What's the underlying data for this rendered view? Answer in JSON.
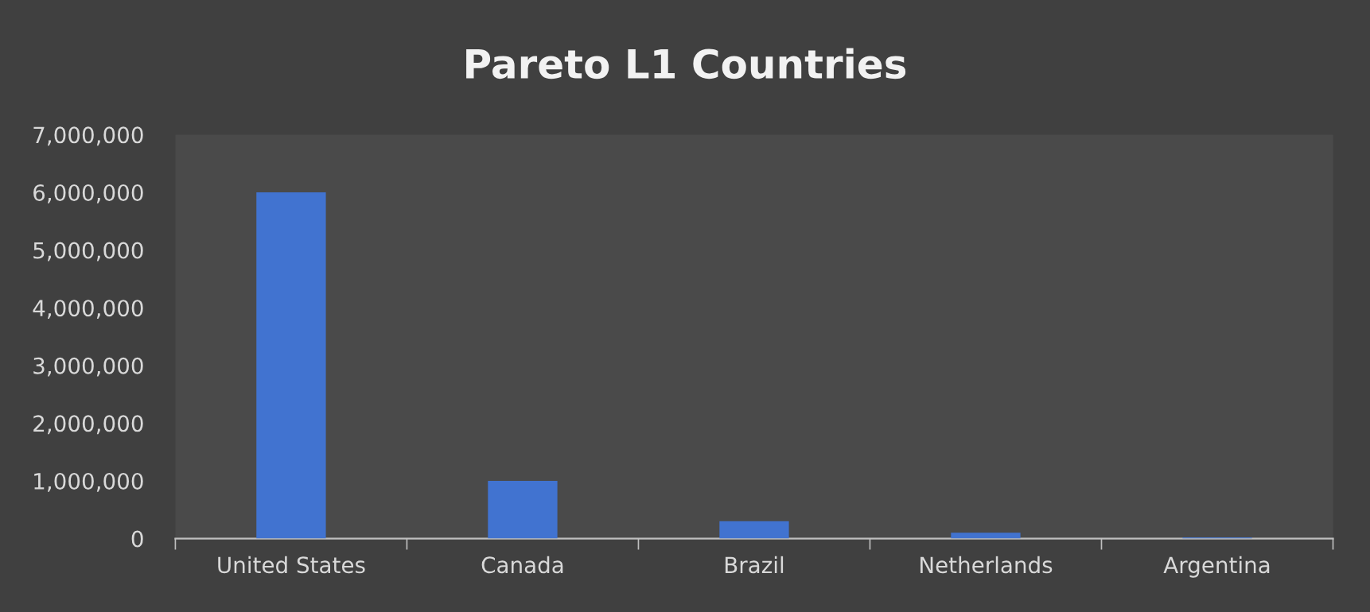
{
  "chart_data": {
    "type": "bar",
    "title": "Pareto L1 Countries",
    "categories": [
      "United States",
      "Canada",
      "Brazil",
      "Netherlands",
      "Argentina"
    ],
    "values": [
      6000000,
      1000000,
      300000,
      100000,
      20000
    ],
    "color": "#4173d0",
    "ylim": [
      0,
      7000000
    ],
    "yticks": [
      {
        "value": 0,
        "label": "0"
      },
      {
        "value": 1000000,
        "label": "1,000,000"
      },
      {
        "value": 2000000,
        "label": "2,000,000"
      },
      {
        "value": 3000000,
        "label": "3,000,000"
      },
      {
        "value": 4000000,
        "label": "4,000,000"
      },
      {
        "value": 5000000,
        "label": "5,000,000"
      },
      {
        "value": 6000000,
        "label": "6,000,000"
      },
      {
        "value": 7000000,
        "label": "7,000,000"
      }
    ],
    "grid": false,
    "legend": false
  }
}
